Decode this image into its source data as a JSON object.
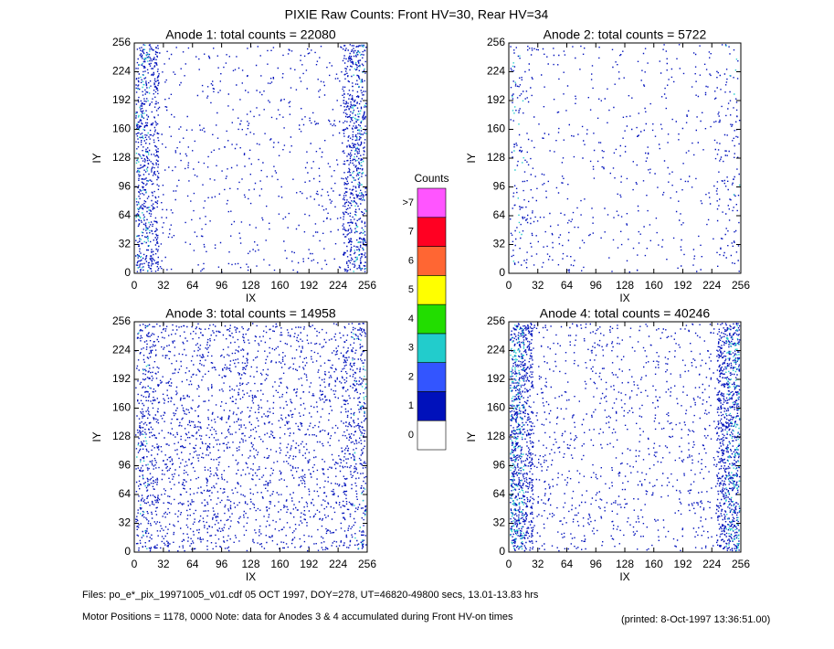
{
  "title": "PIXIE Raw Counts:  Front HV=30, Rear HV=34",
  "chart_data": [
    {
      "type": "heatmap",
      "title": "Anode 1: total counts = 22080",
      "xlabel": "IX",
      "ylabel": "IY",
      "xlim": [
        0,
        256
      ],
      "ylim": [
        0,
        256
      ],
      "xticks": [
        0,
        32,
        64,
        96,
        128,
        160,
        192,
        224,
        256
      ],
      "yticks": [
        0,
        32,
        64,
        96,
        128,
        160,
        192,
        224,
        256
      ]
    },
    {
      "type": "heatmap",
      "title": "Anode 2: total counts = 5722",
      "xlabel": "IX",
      "ylabel": "IY",
      "xlim": [
        0,
        256
      ],
      "ylim": [
        0,
        256
      ],
      "xticks": [
        0,
        32,
        64,
        96,
        128,
        160,
        192,
        224,
        256
      ],
      "yticks": [
        0,
        32,
        64,
        96,
        128,
        160,
        192,
        224,
        256
      ]
    },
    {
      "type": "heatmap",
      "title": "Anode 3: total counts = 14958",
      "xlabel": "IX",
      "ylabel": "IY",
      "xlim": [
        0,
        256
      ],
      "ylim": [
        0,
        256
      ],
      "xticks": [
        0,
        32,
        64,
        96,
        128,
        160,
        192,
        224,
        256
      ],
      "yticks": [
        0,
        32,
        64,
        96,
        128,
        160,
        192,
        224,
        256
      ]
    },
    {
      "type": "heatmap",
      "title": "Anode 4: total counts = 40246",
      "xlabel": "IX",
      "ylabel": "IY",
      "xlim": [
        0,
        256
      ],
      "ylim": [
        0,
        256
      ],
      "xticks": [
        0,
        32,
        64,
        96,
        128,
        160,
        192,
        224,
        256
      ],
      "yticks": [
        0,
        32,
        64,
        96,
        128,
        160,
        192,
        224,
        256
      ]
    }
  ],
  "colorbar": {
    "title": "Counts",
    "ticks": [
      0,
      1,
      2,
      3,
      4,
      5,
      6,
      7
    ],
    "overflow_label": ">7",
    "colors": [
      "#ffffff",
      "#0011bb",
      "#3355ff",
      "#22cccc",
      "#22dd00",
      "#ffff00",
      "#ff6633",
      "#ff0022",
      "#ff55ff"
    ]
  },
  "footer": {
    "files": "Files: po_e*_pix_19971005_v01.cdf     05 OCT 1997, DOY=278, UT=46820-49800 secs, 13.01-13.83 hrs",
    "motor": "Motor Positions = 1178, 0000    Note: data for Anodes 3 & 4 accumulated during Front HV-on times",
    "printed": "(printed:  8-Oct-1997 13:36:51.00)"
  }
}
